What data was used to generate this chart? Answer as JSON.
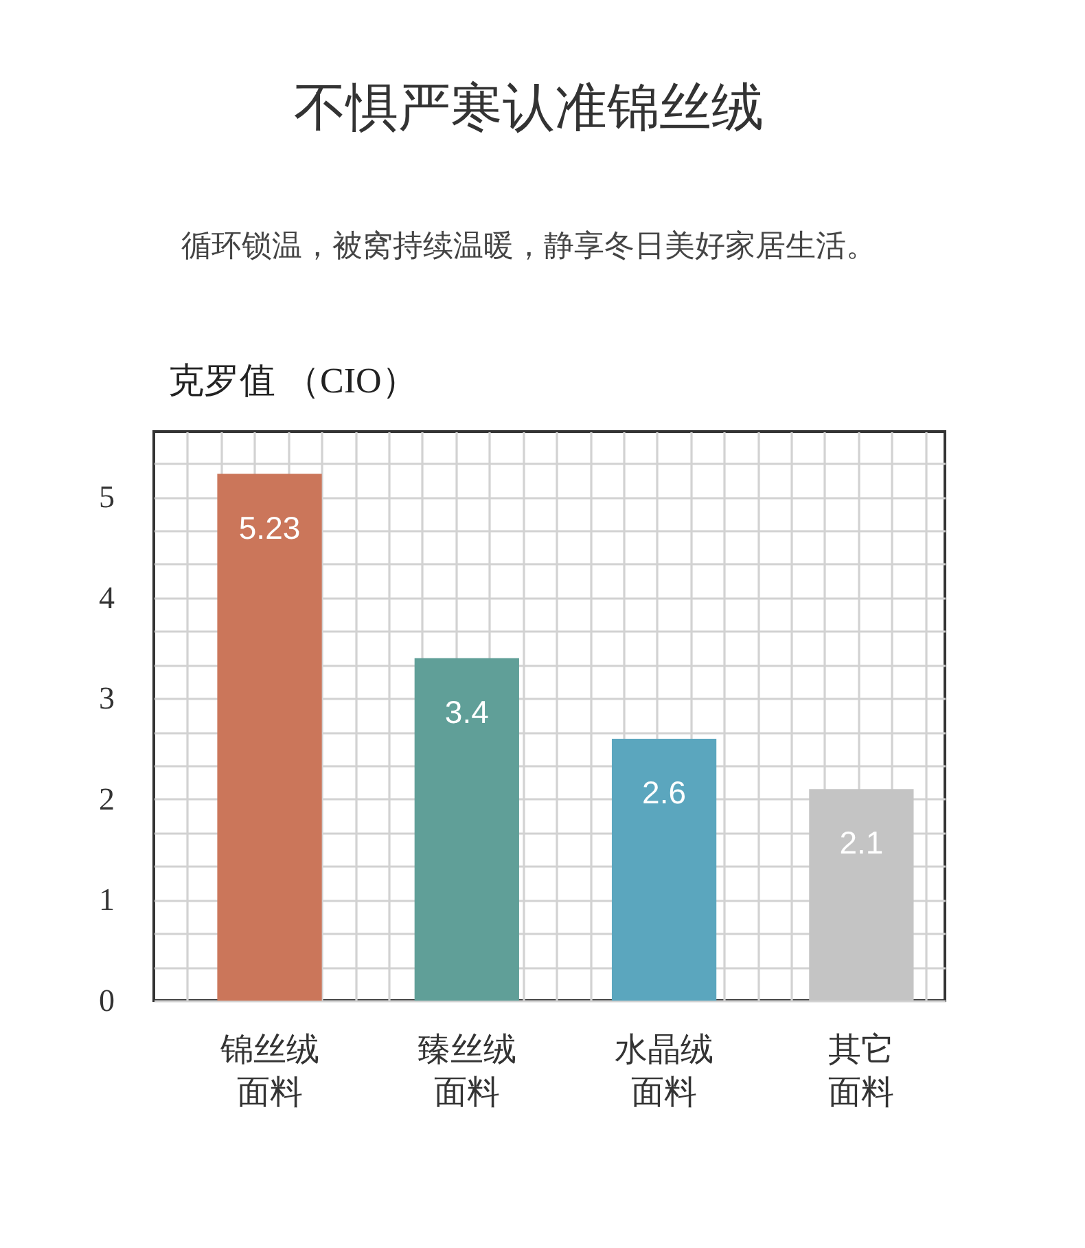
{
  "chart_data": {
    "type": "bar",
    "title": "不惧严寒认准锦丝绒",
    "subtitle": "循环锁温，被窝持续温暖，静享冬日美好家居生活。",
    "ylabel": "克罗值 （CIO）",
    "categories": [
      "锦丝绒面料",
      "臻丝绒面料",
      "水晶绒面料",
      "其它面料"
    ],
    "values": [
      5.23,
      3.4,
      2.6,
      2.1
    ],
    "colors": [
      "#cb765a",
      "#609f98",
      "#5ba6be",
      "#c4c4c4"
    ],
    "data_labels": true,
    "ylim": [
      0,
      5.65
    ],
    "yticks": [
      0,
      1,
      2,
      3,
      4,
      5
    ],
    "grid": true
  }
}
